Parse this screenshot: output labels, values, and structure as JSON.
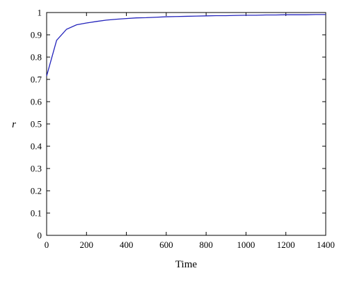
{
  "chart_data": {
    "type": "line",
    "title": "",
    "xlabel": "Time",
    "ylabel": "r",
    "xlim": [
      0,
      1400
    ],
    "ylim": [
      0,
      1
    ],
    "xticks": [
      0,
      200,
      400,
      600,
      800,
      1000,
      1200,
      1400
    ],
    "yticks": [
      0,
      0.1,
      0.2,
      0.3,
      0.4,
      0.5,
      0.6,
      0.7,
      0.8,
      0.9,
      1
    ],
    "ytick_labels": [
      "0",
      "0.1",
      "0.2",
      "0.3",
      "0.4",
      "0.5",
      "0.6",
      "0.7",
      "0.8",
      "0.9",
      "1"
    ],
    "grid": false,
    "series": [
      {
        "color": "#2222bb",
        "x": [
          0,
          50,
          100,
          150,
          200,
          250,
          300,
          350,
          400,
          450,
          500,
          550,
          600,
          650,
          700,
          750,
          800,
          850,
          900,
          950,
          1000,
          1050,
          1100,
          1150,
          1200,
          1250,
          1300,
          1350,
          1400
        ],
        "y": [
          0.715,
          0.875,
          0.925,
          0.945,
          0.953,
          0.96,
          0.966,
          0.97,
          0.973,
          0.976,
          0.977,
          0.979,
          0.981,
          0.982,
          0.983,
          0.984,
          0.985,
          0.986,
          0.986,
          0.987,
          0.988,
          0.988,
          0.989,
          0.989,
          0.99,
          0.99,
          0.99,
          0.991,
          0.991
        ]
      }
    ]
  }
}
